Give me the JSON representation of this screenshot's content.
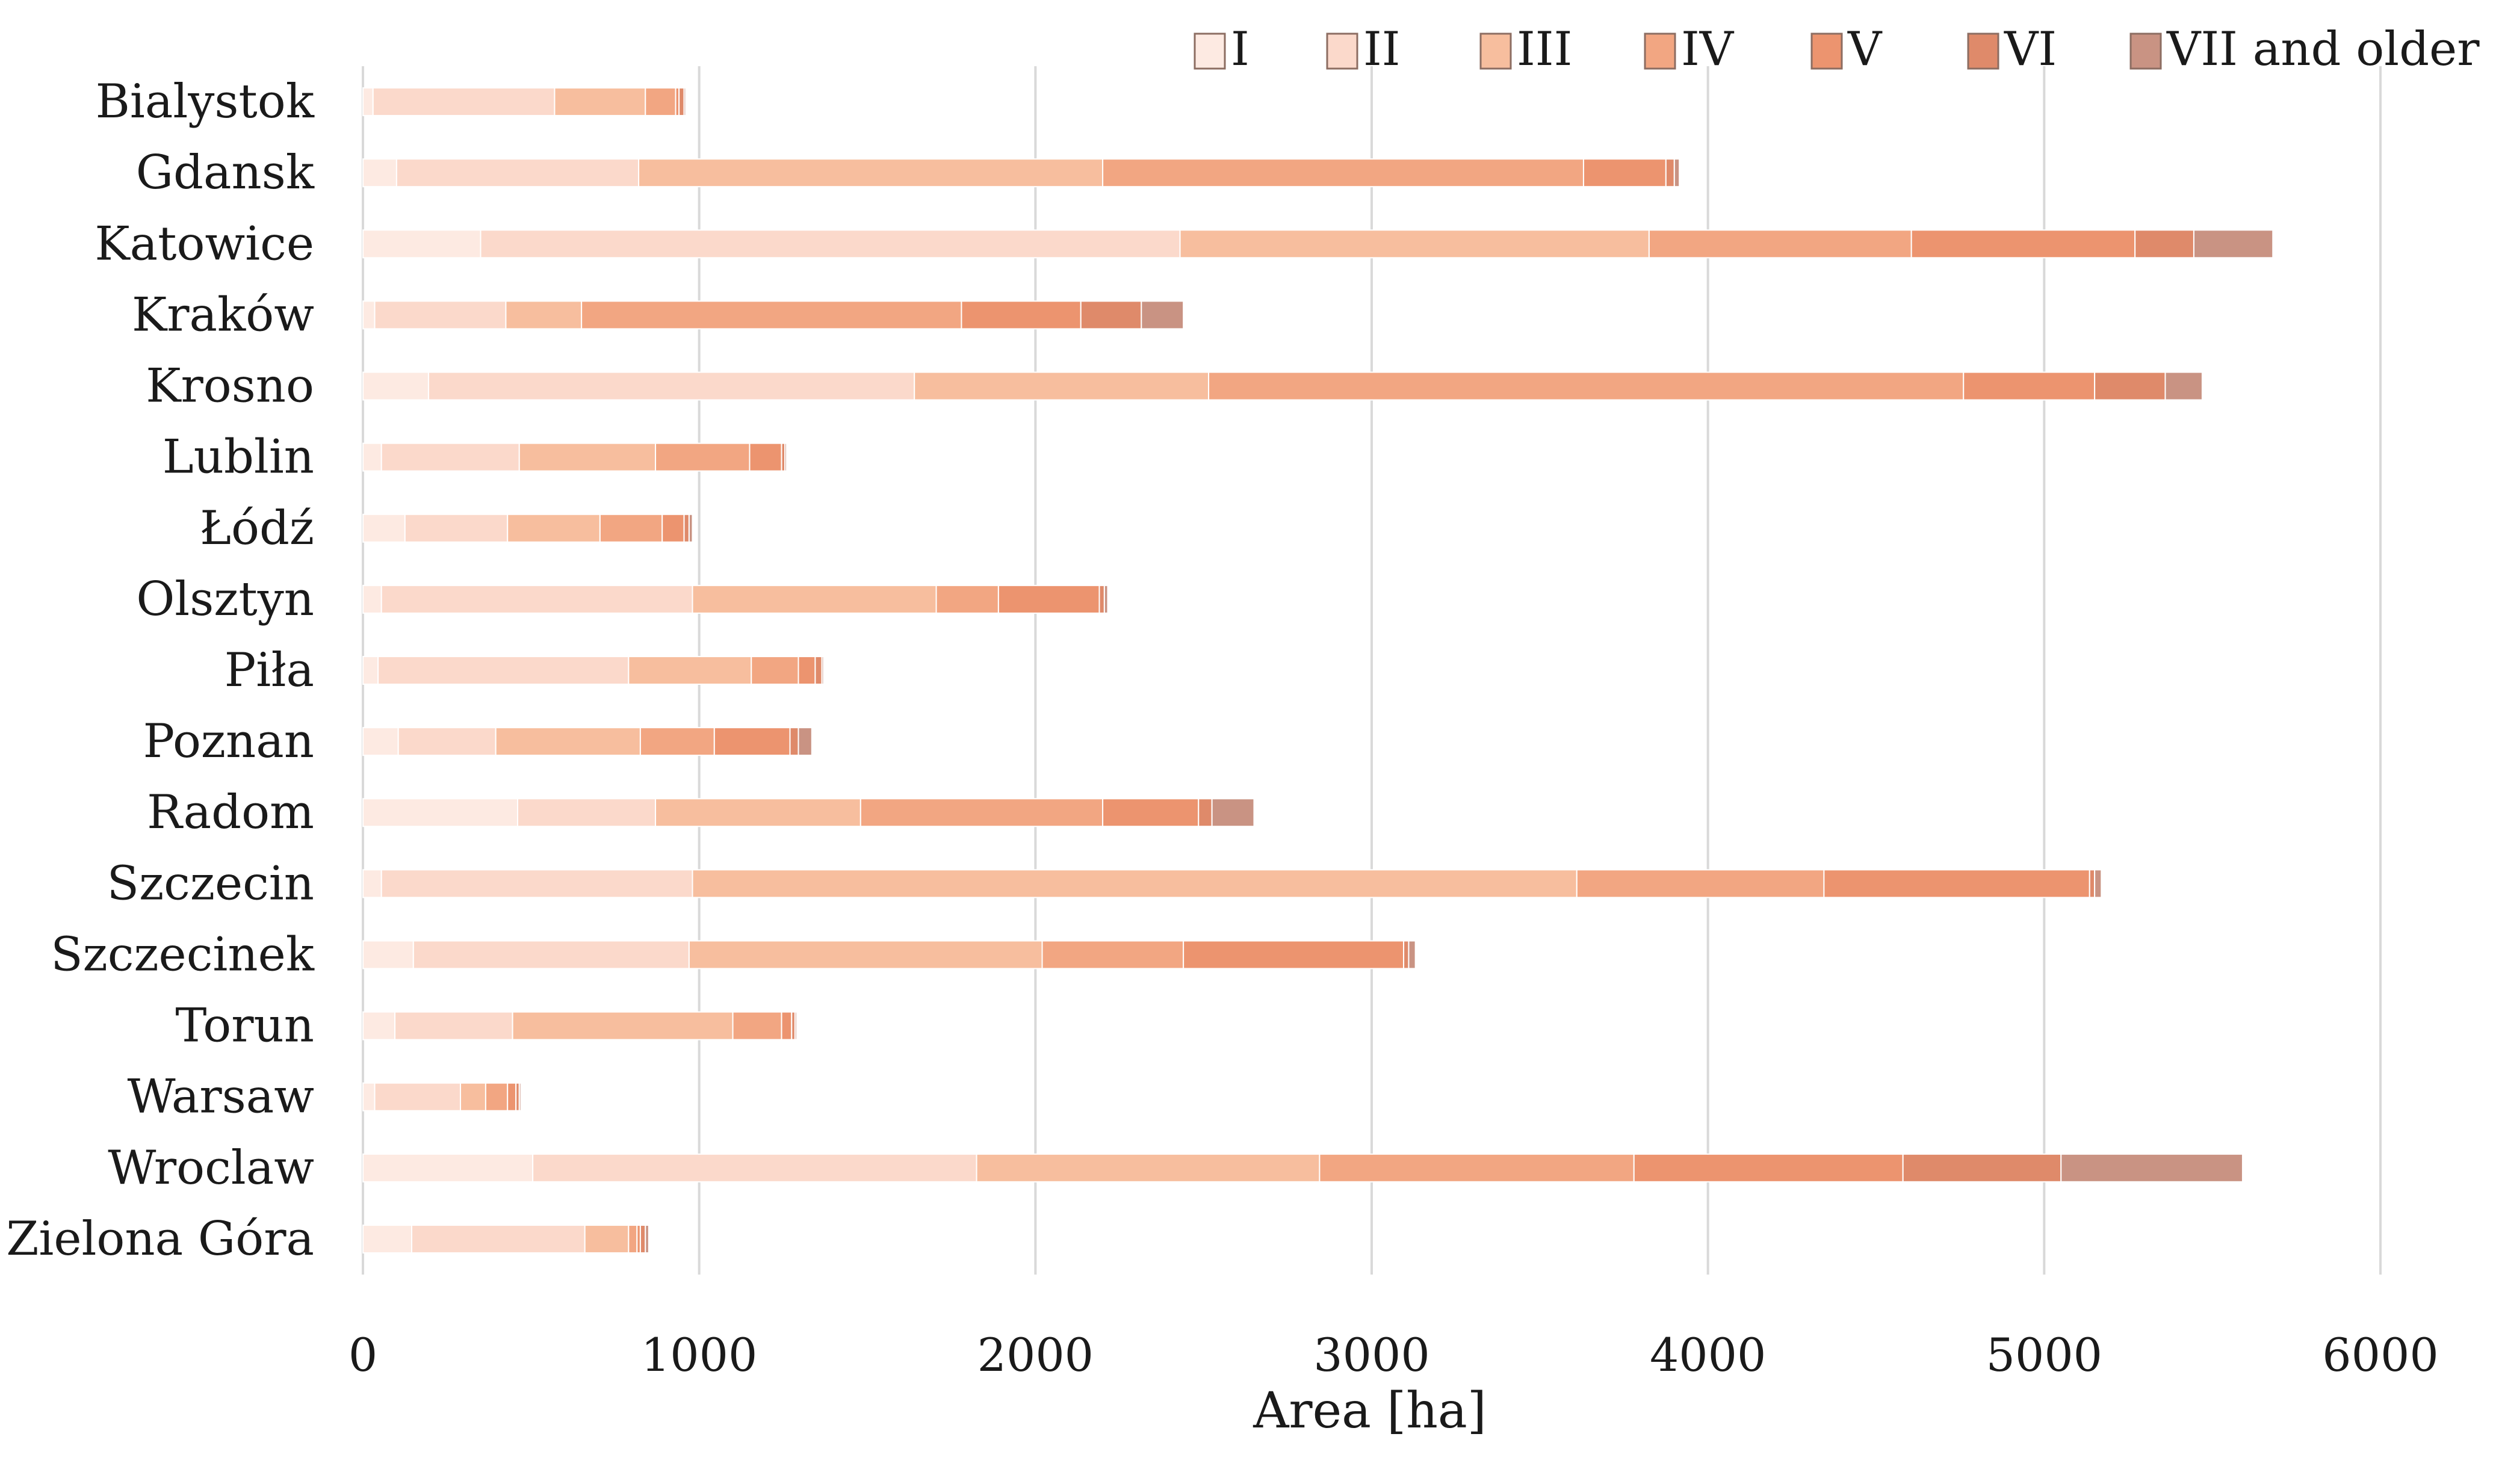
{
  "chart_data": {
    "type": "bar",
    "orientation": "horizontal",
    "stacked": true,
    "title": "",
    "xlabel": "Area [ha]",
    "ylabel": "",
    "xlim": [
      0,
      6000
    ],
    "xticks": [
      0,
      1000,
      2000,
      3000,
      4000,
      5000,
      6000
    ],
    "grid": true,
    "legend_position": "top-right",
    "categories": [
      "Bialystok",
      "Gdansk",
      "Katowice",
      "Kraków",
      "Krosno",
      "Lublin",
      "Łódź",
      "Olsztyn",
      "Piła",
      "Poznan",
      "Radom",
      "Szczecin",
      "Szczecinek",
      "Torun",
      "Warsaw",
      "Wroclaw",
      "Zielona Góra"
    ],
    "series": [
      {
        "name": "I",
        "color": "#fdeae2",
        "values": [
          30,
          100,
          350,
          35,
          195,
          55,
          125,
          55,
          45,
          105,
          460,
          55,
          150,
          95,
          35,
          505,
          145
        ]
      },
      {
        "name": "II",
        "color": "#fbd9cb",
        "values": [
          540,
          720,
          2080,
          390,
          1445,
          410,
          305,
          925,
          745,
          290,
          410,
          925,
          820,
          350,
          255,
          1320,
          515
        ]
      },
      {
        "name": "III",
        "color": "#f7be9e",
        "values": [
          270,
          1380,
          1395,
          225,
          875,
          405,
          275,
          725,
          365,
          430,
          610,
          2630,
          1050,
          655,
          75,
          1020,
          130
        ]
      },
      {
        "name": "IV",
        "color": "#f2a682",
        "values": [
          90,
          1430,
          780,
          1130,
          2245,
          280,
          185,
          185,
          140,
          220,
          720,
          735,
          420,
          145,
          65,
          935,
          25
        ]
      },
      {
        "name": "V",
        "color": "#ec946f",
        "values": [
          10,
          245,
          665,
          355,
          390,
          95,
          65,
          300,
          50,
          225,
          285,
          790,
          655,
          30,
          25,
          800,
          10
        ]
      },
      {
        "name": "VI",
        "color": "#df8a6a",
        "values": [
          15,
          25,
          175,
          180,
          210,
          10,
          15,
          15,
          20,
          25,
          40,
          15,
          15,
          10,
          10,
          470,
          15
        ]
      },
      {
        "name": "VII and older",
        "color": "#c99383",
        "values": [
          5,
          15,
          235,
          125,
          110,
          5,
          10,
          10,
          5,
          40,
          125,
          20,
          20,
          5,
          5,
          540,
          10
        ]
      }
    ]
  }
}
